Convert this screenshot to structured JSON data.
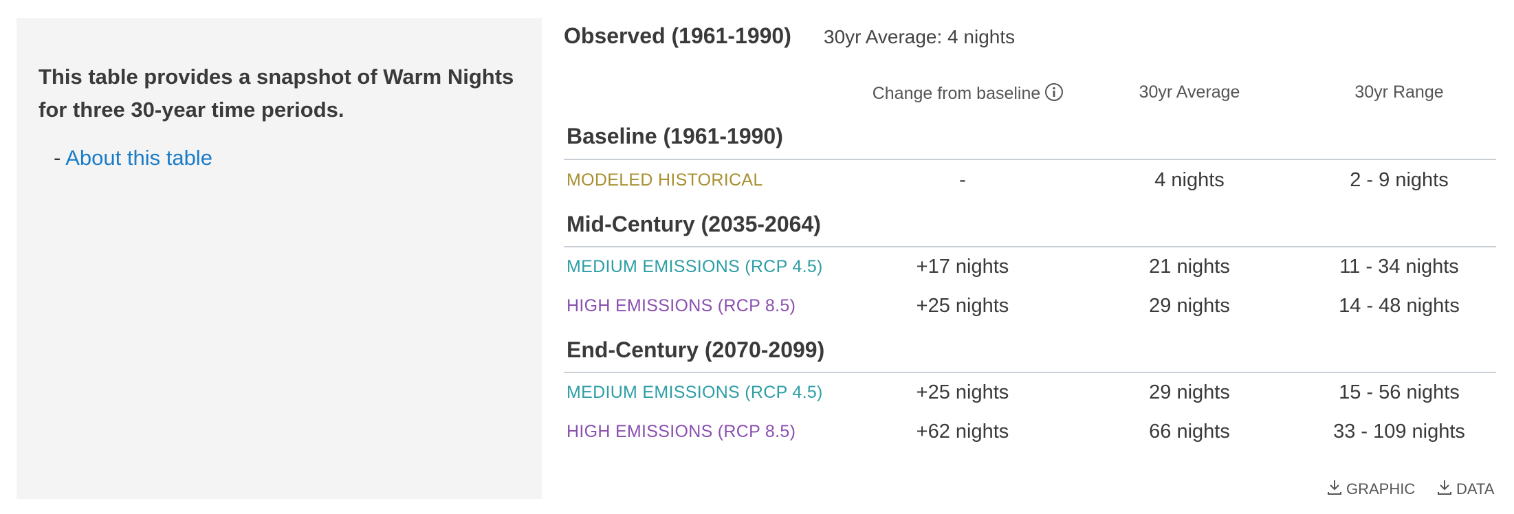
{
  "sidebar": {
    "intro": "This table provides a snapshot of Warm Nights for three 30-year time periods.",
    "about_prefix": "- ",
    "about_link": "About this table"
  },
  "observed": {
    "title": "Observed (1961-1990)",
    "average": "30yr Average: 4 nights"
  },
  "columns": {
    "change": "Change from baseline",
    "average": "30yr Average",
    "range": "30yr Range"
  },
  "colors": {
    "historical": "#a89030",
    "medium": "#2e9ea6",
    "high": "#8a4fb0",
    "link": "#1a7cc7"
  },
  "sections": [
    {
      "title": "Baseline (1961-1990)",
      "rows": [
        {
          "label": "MODELED HISTORICAL",
          "kind": "historical",
          "change": "-",
          "average": "4 nights",
          "range": "2 - 9 nights"
        }
      ]
    },
    {
      "title": "Mid-Century (2035-2064)",
      "rows": [
        {
          "label": "MEDIUM EMISSIONS (RCP 4.5)",
          "kind": "medium",
          "change": "+17 nights",
          "average": "21 nights",
          "range": "11 - 34 nights"
        },
        {
          "label": "HIGH EMISSIONS (RCP 8.5)",
          "kind": "high",
          "change": "+25 nights",
          "average": "29 nights",
          "range": "14 - 48 nights"
        }
      ]
    },
    {
      "title": "End-Century (2070-2099)",
      "rows": [
        {
          "label": "MEDIUM EMISSIONS (RCP 4.5)",
          "kind": "medium",
          "change": "+25 nights",
          "average": "29 nights",
          "range": "15 - 56 nights"
        },
        {
          "label": "HIGH EMISSIONS (RCP 8.5)",
          "kind": "high",
          "change": "+62 nights",
          "average": "66 nights",
          "range": "33 - 109 nights"
        }
      ]
    }
  ],
  "downloads": {
    "graphic": "GRAPHIC",
    "data": "DATA"
  },
  "icons": {
    "info": "info-icon",
    "download": "download-icon"
  }
}
